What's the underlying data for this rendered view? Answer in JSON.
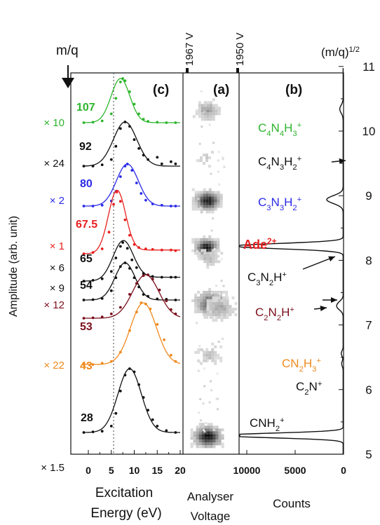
{
  "chart_data": [
    {
      "id": "c",
      "panel_label": "(c)",
      "type": "line",
      "xlabel_line1": "Excitation",
      "xlabel_line2": "Energy (eV)",
      "ylabel": "Amplitude (arb. unit)",
      "xlim": [
        -5,
        21
      ],
      "xticks": [
        0,
        5,
        10,
        15,
        20
      ],
      "marker_label": "m/q",
      "dotted_line_x": 5.5,
      "series": [
        {
          "mq": "107",
          "mult": "× 10",
          "color": "#2db52d",
          "multColor": "#2db52d",
          "center": 7,
          "width": 2.4,
          "amp": 1.0,
          "tail": 0,
          "baselineTo": 20,
          "points": [
            [
              -1,
              0
            ],
            [
              1,
              0.01
            ],
            [
              3,
              0.04
            ],
            [
              5,
              0.2
            ],
            [
              6,
              0.55
            ],
            [
              7,
              0.92
            ],
            [
              7.5,
              1.0
            ],
            [
              8,
              0.95
            ],
            [
              9,
              0.7
            ],
            [
              10,
              0.42
            ],
            [
              11,
              0.2
            ],
            [
              12,
              0.08
            ],
            [
              13,
              0.03
            ],
            [
              15,
              0.01
            ],
            [
              17,
              0
            ],
            [
              19,
              0
            ]
          ]
        },
        {
          "mq": "92",
          "mult": "× 24",
          "color": "#111111",
          "multColor": "#111111",
          "center": 8,
          "width": 3.0,
          "amp": 1.0,
          "tail": 0,
          "baselineTo": 20,
          "points": [
            [
              -1,
              0
            ],
            [
              1,
              0
            ],
            [
              3,
              0.03
            ],
            [
              5,
              0.15
            ],
            [
              6,
              0.45
            ],
            [
              7,
              0.85
            ],
            [
              8,
              1.0
            ],
            [
              9,
              0.9
            ],
            [
              10,
              0.6
            ],
            [
              11,
              0.4
            ],
            [
              12,
              0.25
            ],
            [
              13,
              0.15
            ],
            [
              15,
              0.2
            ],
            [
              16,
              0.05
            ],
            [
              18,
              0.1
            ],
            [
              19,
              0.05
            ]
          ]
        },
        {
          "mq": "80",
          "mult": "× 2",
          "color": "#2a2ae8",
          "multColor": "#2a2ae8",
          "center": 8.5,
          "width": 2.8,
          "amp": 1.0,
          "tail": 0,
          "baselineTo": 20,
          "points": [
            [
              -1,
              0
            ],
            [
              1,
              0
            ],
            [
              3,
              0.02
            ],
            [
              5,
              0.12
            ],
            [
              6,
              0.35
            ],
            [
              7,
              0.7
            ],
            [
              8,
              0.95
            ],
            [
              8.5,
              1.0
            ],
            [
              9.5,
              0.85
            ],
            [
              10.5,
              0.55
            ],
            [
              11.5,
              0.3
            ],
            [
              12.5,
              0.14
            ],
            [
              14,
              0.05
            ],
            [
              16,
              0.02
            ],
            [
              18,
              0
            ],
            [
              19,
              0
            ]
          ]
        },
        {
          "mq": "67.5",
          "mult": "× 1",
          "color": "#e82020",
          "multColor": "#e82020",
          "center": 6.2,
          "width": 2.2,
          "amp": 1.0,
          "tail": 0.06,
          "baselineTo": 20,
          "points": [
            [
              -1,
              0
            ],
            [
              1,
              0.02
            ],
            [
              3,
              0.08
            ],
            [
              4.5,
              0.35
            ],
            [
              5.5,
              0.8
            ],
            [
              6.2,
              1.0
            ],
            [
              7,
              0.85
            ],
            [
              8,
              0.55
            ],
            [
              9,
              0.3
            ],
            [
              10,
              0.15
            ],
            [
              11,
              0.1
            ],
            [
              12.5,
              0.08
            ],
            [
              14,
              0.07
            ],
            [
              16,
              0.06
            ],
            [
              18,
              0.06
            ],
            [
              19,
              0.05
            ]
          ]
        },
        {
          "mq": "65",
          "mult": "× 6",
          "color": "#111111",
          "multColor": "#111111",
          "center": 7.5,
          "width": 2.6,
          "amp": 1.0,
          "tail": 0.1,
          "baselineTo": 20,
          "points": [
            [
              -1,
              0
            ],
            [
              1,
              0.02
            ],
            [
              3,
              0.06
            ],
            [
              5,
              0.25
            ],
            [
              6,
              0.6
            ],
            [
              7,
              0.9
            ],
            [
              7.5,
              1.0
            ],
            [
              8.5,
              0.85
            ],
            [
              9.5,
              0.55
            ],
            [
              10.5,
              0.35
            ],
            [
              12,
              0.2
            ],
            [
              14,
              0.12
            ],
            [
              16,
              0.1
            ],
            [
              18,
              0.1
            ],
            [
              19,
              0.1
            ]
          ]
        },
        {
          "mq": "54",
          "mult": "× 9",
          "color": "#111111",
          "multColor": "#111111",
          "center": 8,
          "width": 2.6,
          "amp": 1.0,
          "tail": 0,
          "baselineTo": 20,
          "points": [
            [
              -1,
              0
            ],
            [
              1,
              0.01
            ],
            [
              3,
              0.04
            ],
            [
              5,
              0.25
            ],
            [
              6,
              0.6
            ],
            [
              7,
              0.9
            ],
            [
              8,
              1.0
            ],
            [
              9,
              0.85
            ],
            [
              10,
              0.6
            ],
            [
              11,
              0.35
            ],
            [
              12,
              0.15
            ],
            [
              13,
              0.1
            ],
            [
              15,
              0.03
            ],
            [
              17,
              0.02
            ],
            [
              19,
              0
            ]
          ]
        },
        {
          "mq": "53",
          "mult": "× 12",
          "color": "#7a0f1c",
          "multColor": "#7a0f1c",
          "center": 12.5,
          "width": 3.4,
          "amp": 1.0,
          "tail": 0,
          "baselineTo": 20,
          "points": [
            [
              -1,
              0
            ],
            [
              1,
              0.01
            ],
            [
              3,
              0.03
            ],
            [
              5,
              0.1
            ],
            [
              7,
              0.25
            ],
            [
              9,
              0.55
            ],
            [
              10.5,
              0.8
            ],
            [
              12,
              0.98
            ],
            [
              13,
              1.0
            ],
            [
              14,
              0.9
            ],
            [
              15.5,
              0.65
            ],
            [
              17,
              0.4
            ],
            [
              18,
              0.2
            ],
            [
              19,
              0.1
            ]
          ]
        },
        {
          "mq": "43",
          "mult": "× 22",
          "color": "#f0891e",
          "multColor": "#f0891e",
          "center": 12,
          "width": 3.3,
          "amp": 1.0,
          "tail": 0,
          "baselineTo": 20,
          "points": [
            [
              -1,
              0
            ],
            [
              1,
              0
            ],
            [
              3,
              0.02
            ],
            [
              5,
              0.05
            ],
            [
              7,
              0.2
            ],
            [
              9,
              0.55
            ],
            [
              10.5,
              0.85
            ],
            [
              11.5,
              1.0
            ],
            [
              12.5,
              0.98
            ],
            [
              13.5,
              0.9
            ],
            [
              15,
              0.65
            ],
            [
              16.5,
              0.4
            ],
            [
              18,
              0.15
            ],
            [
              19,
              0.05
            ]
          ]
        },
        {
          "mq": "28",
          "mult": "× 1.5",
          "color": "#111111",
          "multColor": "#111111",
          "center": 9,
          "width": 3.0,
          "amp": 1.0,
          "tail": 0,
          "baselineTo": 20,
          "points": [
            [
              -1,
              0
            ],
            [
              1,
              0.01
            ],
            [
              3,
              0.02
            ],
            [
              5,
              0.1
            ],
            [
              6,
              0.3
            ],
            [
              7,
              0.65
            ],
            [
              8,
              0.9
            ],
            [
              9,
              1.0
            ],
            [
              10,
              0.95
            ],
            [
              11,
              0.75
            ],
            [
              12,
              0.55
            ],
            [
              13,
              0.35
            ],
            [
              14,
              0.2
            ],
            [
              15,
              0.1
            ],
            [
              17,
              0.03
            ],
            [
              19,
              0
            ]
          ]
        }
      ]
    },
    {
      "id": "a",
      "panel_label": "(a)",
      "type": "heatmap",
      "xlabel_line1": "Analyser",
      "xlabel_line2": "Voltage",
      "top_labels": [
        "1967 V",
        "1950 V"
      ],
      "spots": [
        {
          "sqrt_mq": 10.34,
          "offset": 0.42,
          "intensity": 0.35,
          "spread": 1.0
        },
        {
          "sqrt_mq": 9.59,
          "offset": 0.42,
          "intensity": 0.12,
          "spread": 0.8
        },
        {
          "sqrt_mq": 8.94,
          "offset": 0.42,
          "intensity": 0.95,
          "spread": 1.1
        },
        {
          "sqrt_mq": 8.22,
          "offset": 0.4,
          "intensity": 0.95,
          "spread": 1.0
        },
        {
          "sqrt_mq": 8.06,
          "offset": 0.45,
          "intensity": 0.25,
          "spread": 0.9
        },
        {
          "sqrt_mq": 7.35,
          "offset": 0.48,
          "intensity": 0.7,
          "spread": 1.6
        },
        {
          "sqrt_mq": 7.28,
          "offset": 0.62,
          "intensity": 0.3,
          "spread": 1.4
        },
        {
          "sqrt_mq": 6.56,
          "offset": 0.45,
          "intensity": 0.2,
          "spread": 1.0
        },
        {
          "sqrt_mq": 5.29,
          "offset": 0.42,
          "intensity": 1.0,
          "spread": 1.3
        }
      ]
    },
    {
      "id": "b",
      "panel_label": "(b)",
      "type": "line",
      "xlabel": "Counts",
      "axis_title": "(m/q)",
      "axis_title_exp": "1/2",
      "xticks": [
        10000,
        5000,
        0
      ],
      "xtick_labels": [
        "10000",
        "5000",
        "0"
      ],
      "ylim": [
        5,
        11
      ],
      "yticks": [
        5,
        6,
        7,
        8,
        9,
        10,
        11
      ],
      "peaks": [
        {
          "sqrt_mq": 5.29,
          "counts": 12500,
          "width": 0.035
        },
        {
          "sqrt_mq": 8.22,
          "counts": 11300,
          "width": 0.04
        },
        {
          "sqrt_mq": 8.94,
          "counts": 1700,
          "width": 0.06
        },
        {
          "sqrt_mq": 10.34,
          "counts": 350,
          "width": 0.06
        },
        {
          "sqrt_mq": 7.28,
          "counts": 600,
          "width": 0.05
        },
        {
          "sqrt_mq": 7.35,
          "counts": 250,
          "width": 0.04
        },
        {
          "sqrt_mq": 6.56,
          "counts": 200,
          "width": 0.04
        },
        {
          "sqrt_mq": 6.4,
          "counts": 150,
          "width": 0.04
        }
      ],
      "labels": [
        {
          "parts": [
            [
              "C",
              ""
            ],
            [
              "4",
              "sub"
            ],
            [
              "N",
              ""
            ],
            [
              "4",
              "sub"
            ],
            [
              "H",
              ""
            ],
            [
              "3",
              "sub"
            ],
            [
              "+",
              "sup"
            ]
          ],
          "color": "#2db52d"
        },
        {
          "parts": [
            [
              "C",
              ""
            ],
            [
              "4",
              "sub"
            ],
            [
              "N",
              ""
            ],
            [
              "3",
              "sub"
            ],
            [
              "H",
              ""
            ],
            [
              "2",
              "sub"
            ],
            [
              "+",
              "sup"
            ]
          ],
          "color": "#111111"
        },
        {
          "parts": [
            [
              "C",
              ""
            ],
            [
              "3",
              "sub"
            ],
            [
              "N",
              ""
            ],
            [
              "3",
              "sub"
            ],
            [
              "H",
              ""
            ],
            [
              "2",
              "sub"
            ],
            [
              "+",
              "sup"
            ]
          ],
          "color": "#2a2ae8"
        },
        {
          "parts": [
            [
              "Ade",
              ""
            ],
            [
              "2+",
              "sup"
            ]
          ],
          "color": "#e82020"
        },
        {
          "parts": [
            [
              "C",
              ""
            ],
            [
              "3",
              "sub"
            ],
            [
              "N",
              ""
            ],
            [
              "2",
              "sub"
            ],
            [
              "H",
              ""
            ],
            [
              "+",
              "sup"
            ]
          ],
          "color": "#111111"
        },
        {
          "parts": [
            [
              "C",
              ""
            ],
            [
              "2",
              "sub"
            ],
            [
              "N",
              ""
            ],
            [
              "2",
              "sub"
            ],
            [
              "H",
              ""
            ],
            [
              "+",
              "sup"
            ]
          ],
          "color": "#7a0f1c"
        },
        {
          "parts": [
            [
              "CN",
              ""
            ],
            [
              "2",
              "sub"
            ],
            [
              "H",
              ""
            ],
            [
              "3",
              "sub"
            ],
            [
              "+",
              "sup"
            ]
          ],
          "color": "#f0891e"
        },
        {
          "parts": [
            [
              "C",
              ""
            ],
            [
              "2",
              "sub"
            ],
            [
              "N",
              ""
            ],
            [
              "+",
              "sup"
            ]
          ],
          "color": "#111111"
        },
        {
          "parts": [
            [
              "CNH",
              ""
            ],
            [
              "2",
              "sub"
            ],
            [
              "+",
              "sup"
            ]
          ],
          "color": "#111111"
        }
      ]
    }
  ]
}
